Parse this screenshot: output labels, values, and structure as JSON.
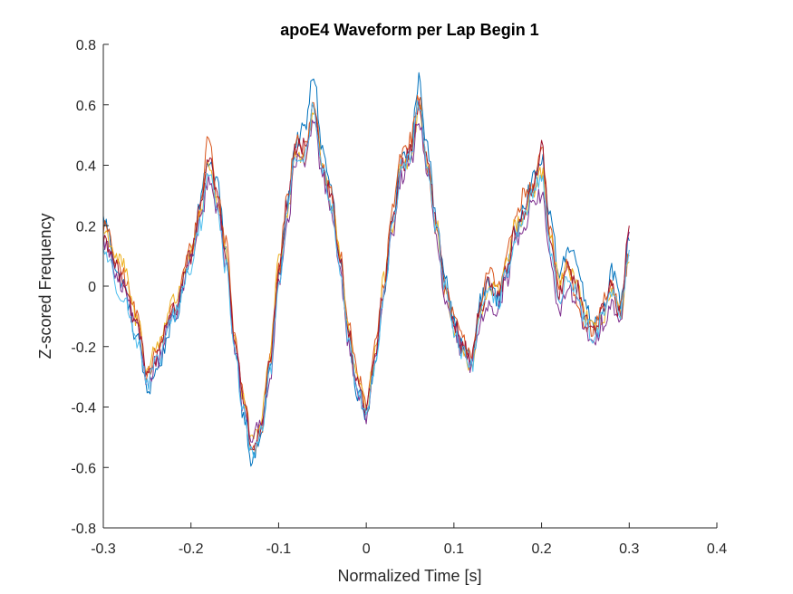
{
  "chart_data": {
    "type": "line",
    "title": "apoE4 Waveform per Lap Begin 1",
    "xlabel": "Normalized Time [s]",
    "ylabel": "Z-scored Frequency",
    "xlim": [
      -0.3,
      0.4
    ],
    "ylim": [
      -0.8,
      0.8
    ],
    "xticks": [
      -0.3,
      -0.2,
      -0.1,
      0,
      0.1,
      0.2,
      0.3,
      0.4
    ],
    "xtick_labels": [
      "-0.3",
      "-0.2",
      "-0.1",
      "0",
      "0.1",
      "0.2",
      "0.3",
      "0.4"
    ],
    "yticks": [
      -0.8,
      -0.6,
      -0.4,
      -0.2,
      0,
      0.2,
      0.4,
      0.6,
      0.8
    ],
    "ytick_labels": [
      "-0.8",
      "-0.6",
      "-0.4",
      "-0.2",
      "0",
      "0.2",
      "0.4",
      "0.6",
      "0.8"
    ],
    "grid": false,
    "legend": "none",
    "x": [
      -0.3,
      -0.28,
      -0.26,
      -0.25,
      -0.24,
      -0.22,
      -0.2,
      -0.19,
      -0.18,
      -0.17,
      -0.16,
      -0.15,
      -0.14,
      -0.13,
      -0.12,
      -0.11,
      -0.1,
      -0.09,
      -0.08,
      -0.07,
      -0.06,
      -0.05,
      -0.04,
      -0.03,
      -0.02,
      -0.01,
      0,
      0.01,
      0.02,
      0.03,
      0.04,
      0.05,
      0.06,
      0.07,
      0.08,
      0.09,
      0.1,
      0.11,
      0.12,
      0.13,
      0.14,
      0.15,
      0.16,
      0.17,
      0.18,
      0.19,
      0.2,
      0.21,
      0.22,
      0.23,
      0.24,
      0.25,
      0.26,
      0.27,
      0.28,
      0.29,
      0.3
    ],
    "series": [
      {
        "color": "#0072BD",
        "values": [
          0.22,
          0.02,
          -0.18,
          -0.35,
          -0.28,
          -0.12,
          0.1,
          0.28,
          0.42,
          0.35,
          0.1,
          -0.2,
          -0.42,
          -0.58,
          -0.5,
          -0.28,
          0.02,
          0.28,
          0.48,
          0.52,
          0.7,
          0.45,
          0.32,
          0.08,
          -0.18,
          -0.35,
          -0.42,
          -0.28,
          -0.05,
          0.22,
          0.42,
          0.45,
          0.68,
          0.45,
          0.22,
          0.05,
          -0.12,
          -0.2,
          -0.25,
          -0.05,
          0.02,
          -0.05,
          0.05,
          0.18,
          0.28,
          0.35,
          0.42,
          0.22,
          0.05,
          0.12,
          0.1,
          -0.05,
          -0.12,
          -0.08,
          0.05,
          -0.05,
          0.15
        ]
      },
      {
        "color": "#D95319",
        "values": [
          0.2,
          0.05,
          -0.1,
          -0.3,
          -0.22,
          -0.08,
          0.12,
          0.25,
          0.5,
          0.3,
          0.15,
          -0.15,
          -0.35,
          -0.55,
          -0.48,
          -0.25,
          0.05,
          0.3,
          0.5,
          0.45,
          0.62,
          0.38,
          0.3,
          0.1,
          -0.12,
          -0.3,
          -0.38,
          -0.2,
          0.0,
          0.25,
          0.45,
          0.48,
          0.62,
          0.4,
          0.18,
          -0.02,
          -0.1,
          -0.18,
          -0.22,
          -0.08,
          0.05,
          0.0,
          0.1,
          0.22,
          0.3,
          0.32,
          0.45,
          0.18,
          0.0,
          0.08,
          -0.05,
          -0.12,
          -0.15,
          -0.05,
          0.0,
          -0.08,
          0.1
        ]
      },
      {
        "color": "#EDB120",
        "values": [
          0.18,
          0.08,
          -0.12,
          -0.28,
          -0.2,
          -0.05,
          0.1,
          0.22,
          0.4,
          0.28,
          0.12,
          -0.18,
          -0.38,
          -0.52,
          -0.45,
          -0.22,
          0.08,
          0.25,
          0.45,
          0.42,
          0.58,
          0.4,
          0.28,
          0.12,
          -0.15,
          -0.32,
          -0.4,
          -0.22,
          0.02,
          0.2,
          0.4,
          0.42,
          0.58,
          0.42,
          0.2,
          0.0,
          -0.15,
          -0.22,
          -0.28,
          -0.1,
          0.0,
          -0.02,
          0.08,
          0.2,
          0.22,
          0.3,
          0.38,
          0.15,
          0.02,
          0.05,
          0.02,
          -0.1,
          -0.15,
          -0.1,
          -0.02,
          -0.1,
          0.08
        ]
      },
      {
        "color": "#7E2F8E",
        "values": [
          0.15,
          0.0,
          -0.15,
          -0.32,
          -0.25,
          -0.1,
          0.08,
          0.2,
          0.35,
          0.25,
          0.08,
          -0.2,
          -0.4,
          -0.5,
          -0.46,
          -0.3,
          0.0,
          0.22,
          0.42,
          0.4,
          0.55,
          0.36,
          0.26,
          0.05,
          -0.2,
          -0.35,
          -0.44,
          -0.25,
          -0.02,
          0.18,
          0.36,
          0.4,
          0.55,
          0.38,
          0.15,
          -0.05,
          -0.15,
          -0.22,
          -0.26,
          -0.12,
          -0.05,
          -0.08,
          0.02,
          0.15,
          0.2,
          0.28,
          0.3,
          0.1,
          -0.1,
          0.0,
          -0.05,
          -0.15,
          -0.2,
          -0.12,
          -0.05,
          -0.12,
          0.18
        ]
      },
      {
        "color": "#A2142F",
        "values": [
          0.16,
          0.04,
          -0.14,
          -0.3,
          -0.24,
          -0.08,
          0.1,
          0.24,
          0.44,
          0.3,
          0.1,
          -0.18,
          -0.38,
          -0.54,
          -0.48,
          -0.26,
          0.03,
          0.27,
          0.46,
          0.46,
          0.6,
          0.4,
          0.29,
          0.08,
          -0.16,
          -0.33,
          -0.4,
          -0.24,
          -0.01,
          0.21,
          0.4,
          0.44,
          0.6,
          0.42,
          0.2,
          0.02,
          -0.12,
          -0.2,
          -0.24,
          -0.08,
          0.02,
          -0.04,
          0.06,
          0.18,
          0.24,
          0.32,
          0.46,
          0.16,
          -0.02,
          0.06,
          0.0,
          -0.1,
          -0.14,
          -0.08,
          0.0,
          -0.1,
          0.2
        ]
      },
      {
        "color": "#4DBEEE",
        "values": [
          0.12,
          -0.02,
          -0.18,
          -0.33,
          -0.26,
          -0.1,
          0.06,
          0.2,
          0.38,
          0.26,
          0.06,
          -0.22,
          -0.42,
          -0.56,
          -0.49,
          -0.28,
          -0.01,
          0.24,
          0.44,
          0.42,
          0.6,
          0.38,
          0.27,
          0.06,
          -0.18,
          -0.34,
          -0.42,
          -0.26,
          -0.04,
          0.19,
          0.38,
          0.42,
          0.6,
          0.4,
          0.18,
          0.0,
          -0.14,
          -0.22,
          -0.27,
          -0.1,
          -0.02,
          -0.06,
          0.04,
          0.16,
          0.22,
          0.3,
          0.36,
          0.12,
          -0.04,
          0.02,
          -0.02,
          -0.12,
          -0.18,
          -0.1,
          -0.03,
          -0.1,
          0.12
        ]
      }
    ]
  }
}
